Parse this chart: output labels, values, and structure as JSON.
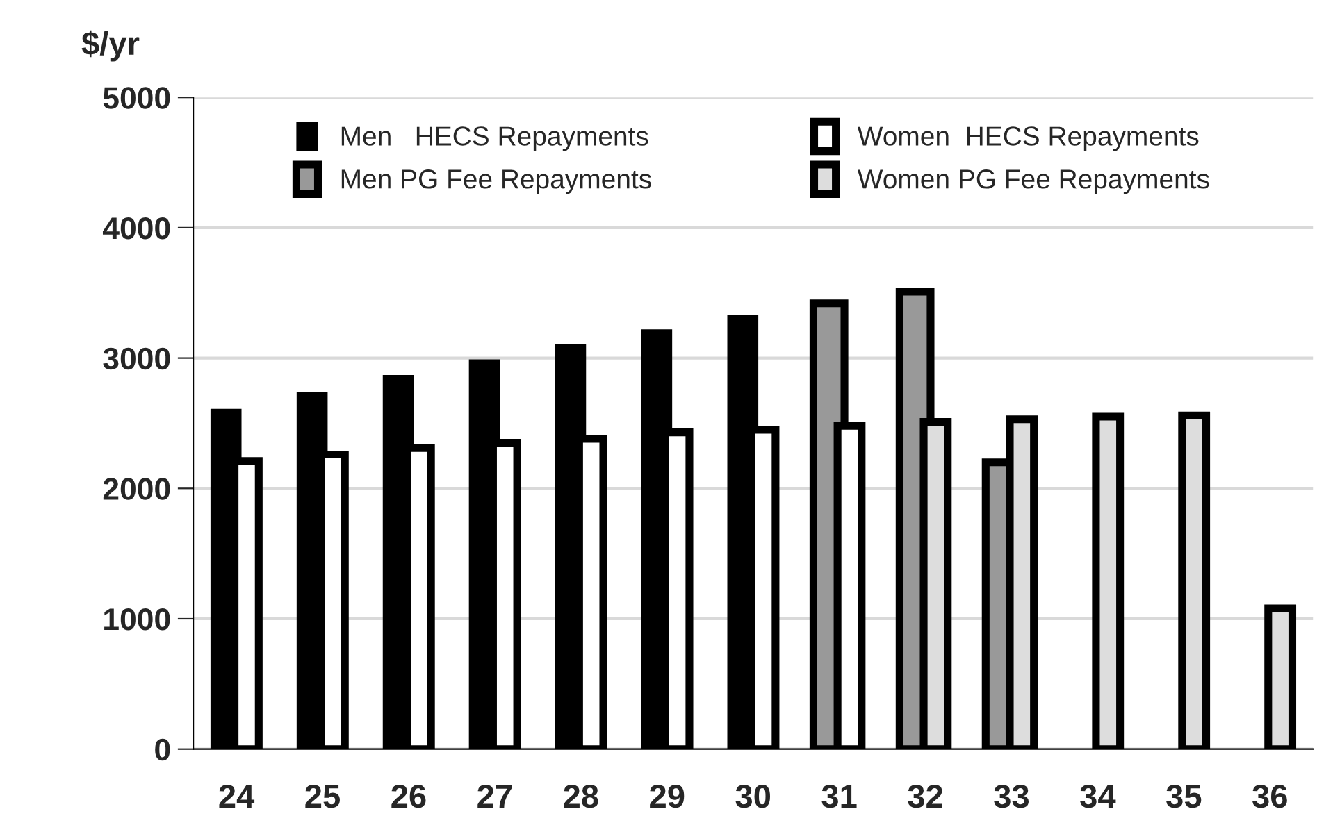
{
  "chart_data": {
    "type": "bar",
    "ylabel": "$/yr",
    "categories": [
      "24",
      "25",
      "26",
      "27",
      "28",
      "29",
      "30",
      "31",
      "32",
      "33",
      "34",
      "35",
      "36"
    ],
    "series": [
      {
        "name": "Men   HECS Repayments",
        "color": "#000000",
        "values": [
          2610,
          2740,
          2870,
          2990,
          3110,
          3220,
          3330,
          null,
          null,
          null,
          null,
          null,
          null
        ]
      },
      {
        "name": "Men PG Fee Repayments",
        "color": "#999999",
        "values": [
          null,
          null,
          null,
          null,
          null,
          null,
          null,
          3420,
          3510,
          2200,
          null,
          null,
          null
        ]
      },
      {
        "name": "Women  HECS Repayments",
        "color": "#ffffff",
        "values": [
          2210,
          2260,
          2310,
          2350,
          2380,
          2430,
          2450,
          2480,
          null,
          null,
          null,
          null,
          null
        ]
      },
      {
        "name": "Women PG Fee Repayments",
        "color": "#dddddd",
        "values": [
          null,
          null,
          null,
          null,
          null,
          null,
          null,
          null,
          2510,
          2530,
          2550,
          2560,
          1080
        ]
      }
    ],
    "ylim": [
      0,
      5000
    ],
    "yticks": [
      0,
      1000,
      2000,
      3000,
      4000,
      5000
    ],
    "grid": "y",
    "legend": "top"
  }
}
